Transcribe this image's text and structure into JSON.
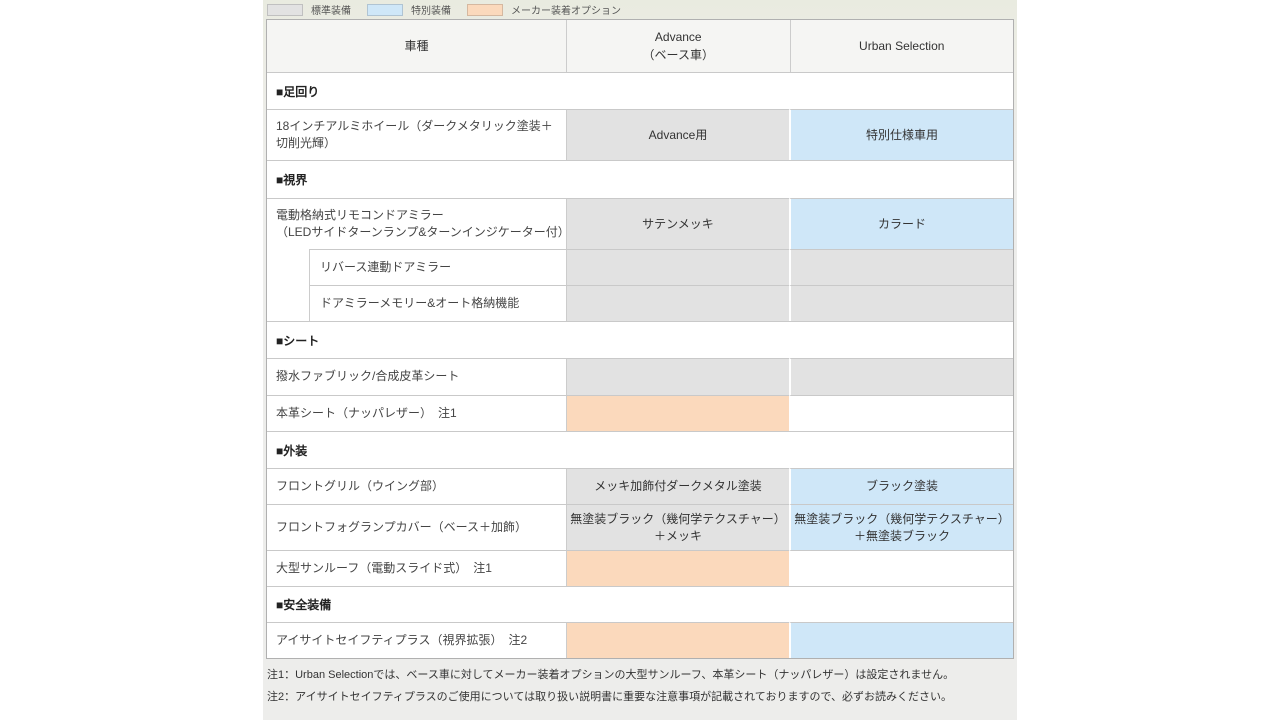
{
  "colors": {
    "standard": "#e2e2e2",
    "special": "#cfe7f8",
    "option": "#fbd9bc"
  },
  "legend": [
    {
      "label": "標準装備",
      "fill": "standard"
    },
    {
      "label": "特別装備",
      "fill": "special"
    },
    {
      "label": "メーカー装着オプション",
      "fill": "option"
    }
  ],
  "header": {
    "col1": "車種",
    "col2": "Advance\n（ベース車）",
    "col3": "Urban Selection"
  },
  "rows": [
    {
      "type": "section",
      "label": "■足回り"
    },
    {
      "type": "item",
      "label": "18インチアルミホイール（ダークメタリック塗装＋切削光輝）",
      "cells": [
        {
          "text": "Advance用",
          "fill": "standard"
        },
        {
          "text": "特別仕様車用",
          "fill": "special"
        }
      ]
    },
    {
      "type": "section",
      "label": "■視界"
    },
    {
      "type": "item",
      "label": "電動格納式リモコンドアミラー\n（LEDサイドターンランプ&ターンインジケーター付）",
      "cells": [
        {
          "text": "サテンメッキ",
          "fill": "standard"
        },
        {
          "text": "カラード",
          "fill": "special"
        }
      ]
    },
    {
      "type": "subitem",
      "label": "リバース連動ドアミラー",
      "cells": [
        {
          "text": "",
          "fill": "standard"
        },
        {
          "text": "",
          "fill": "standard"
        }
      ]
    },
    {
      "type": "subitem",
      "label": "ドアミラーメモリー&オート格納機能",
      "cells": [
        {
          "text": "",
          "fill": "standard"
        },
        {
          "text": "",
          "fill": "standard"
        }
      ]
    },
    {
      "type": "section",
      "label": "■シート"
    },
    {
      "type": "item",
      "label": "撥水ファブリック/合成皮革シート",
      "cells": [
        {
          "text": "",
          "fill": "standard"
        },
        {
          "text": "",
          "fill": "standard"
        }
      ]
    },
    {
      "type": "item",
      "label": "本革シート（ナッパレザー）　注1",
      "cells": [
        {
          "text": "",
          "fill": "option"
        },
        {
          "text": "",
          "fill": "none"
        }
      ]
    },
    {
      "type": "section",
      "label": "■外装"
    },
    {
      "type": "item",
      "label": "フロントグリル（ウイング部）",
      "cells": [
        {
          "text": "メッキ加飾付ダークメタル塗装",
          "fill": "standard"
        },
        {
          "text": "ブラック塗装",
          "fill": "special"
        }
      ]
    },
    {
      "type": "item",
      "label": "フロントフォグランプカバー（ベース＋加飾）",
      "cells": [
        {
          "text": "無塗装ブラック（幾何学テクスチャー）\n＋メッキ",
          "fill": "standard"
        },
        {
          "text": "無塗装ブラック（幾何学テクスチャー）\n＋無塗装ブラック",
          "fill": "special"
        }
      ]
    },
    {
      "type": "item",
      "label": "大型サンルーフ（電動スライド式）　注1",
      "cells": [
        {
          "text": "",
          "fill": "option"
        },
        {
          "text": "",
          "fill": "none"
        }
      ]
    },
    {
      "type": "section",
      "label": "■安全装備"
    },
    {
      "type": "item",
      "label": "アイサイトセイフティプラス（視界拡張）　注2",
      "cells": [
        {
          "text": "",
          "fill": "option"
        },
        {
          "text": "",
          "fill": "special"
        }
      ]
    }
  ],
  "footnotes": [
    "注1：Urban Selectionでは、ベース車に対してメーカー装着オプションの大型サンルーフ、本革シート（ナッパレザー）は設定されません。",
    "注2：アイサイトセイフティプラスのご使用については取り扱い説明書に重要な注意事項が記載されておりますので、必ずお読みください。"
  ]
}
